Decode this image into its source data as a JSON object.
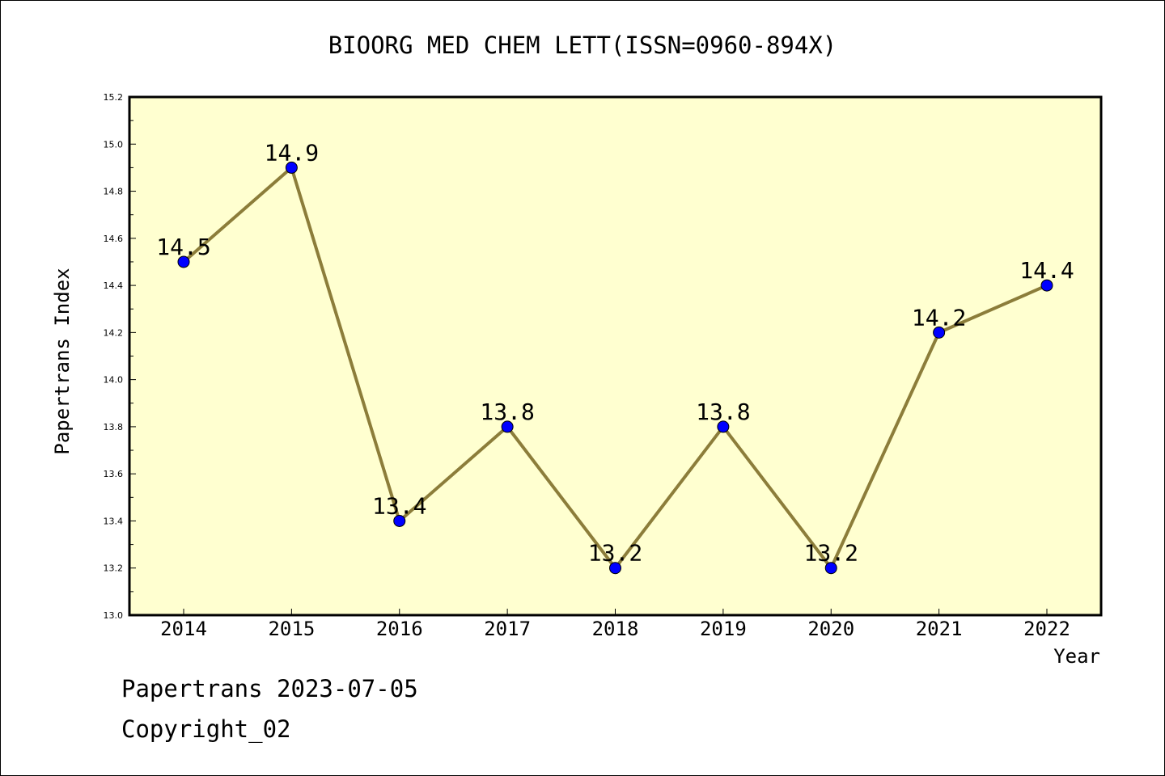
{
  "chart_data": {
    "type": "line",
    "title": "BIOORG MED CHEM LETT(ISSN=0960-894X)",
    "xlabel": "Year",
    "ylabel": "Papertrans Index",
    "categories": [
      "2014",
      "2015",
      "2016",
      "2017",
      "2018",
      "2019",
      "2020",
      "2021",
      "2022"
    ],
    "series": [
      {
        "values": [
          14.5,
          14.9,
          13.4,
          13.8,
          13.2,
          13.8,
          13.2,
          14.2,
          14.4
        ],
        "data_labels": [
          "14.5",
          "14.9",
          "13.4",
          "13.8",
          "13.2",
          "13.8",
          "13.2",
          "14.2",
          "14.4"
        ]
      }
    ],
    "ylim": [
      13.0,
      15.2
    ],
    "yticks": [
      "13.0",
      "13.2",
      "13.4",
      "13.6",
      "13.8",
      "14.0",
      "14.2",
      "14.4",
      "14.6",
      "14.8",
      "15.0",
      "15.2"
    ],
    "grid": false,
    "legend": "none",
    "colors": {
      "plot_background": "#ffffd0",
      "line": "#8c7d3a",
      "marker": "#0000ff"
    }
  },
  "footer": {
    "line1": "Papertrans 2023-07-05",
    "line2": "Copyright_02"
  }
}
